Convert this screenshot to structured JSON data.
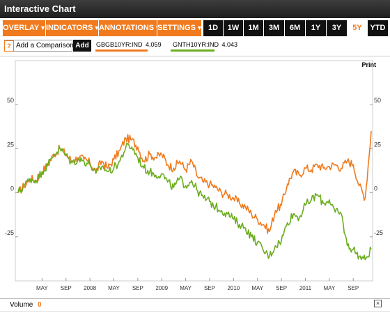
{
  "title": "Interactive Chart",
  "toolbar": {
    "menus": [
      "OVERLAY",
      "INDICATORS",
      "ANNOTATIONS",
      "SETTINGS"
    ],
    "ranges": [
      "1D",
      "1W",
      "1M",
      "3M",
      "6M",
      "1Y",
      "3Y",
      "5Y",
      "YTD"
    ],
    "active_range": "5Y"
  },
  "comparison": {
    "help_label": "?",
    "placeholder": "Add a Comparison",
    "add_label": "Add"
  },
  "legend": [
    {
      "symbol": "GBGB10YR:IND",
      "value": "4.059",
      "color": "#f07a1d"
    },
    {
      "symbol": "GNTH10YR:IND",
      "value": "4.043",
      "color": "#6aad1e"
    }
  ],
  "print_label": "Print",
  "volume": {
    "label": "Volume",
    "value": "0"
  },
  "chart_data": {
    "type": "line",
    "y_ticks": [
      "50",
      "25",
      "0",
      "-25"
    ],
    "ylim": [
      -50,
      75
    ],
    "x_tick_labels": [
      "MAY",
      "SEP",
      "2008",
      "MAY",
      "SEP",
      "2009",
      "MAY",
      "SEP",
      "2010",
      "MAY",
      "SEP",
      "2011",
      "MAY",
      "SEP"
    ],
    "x_tick_positions": [
      4,
      8,
      12,
      16,
      20,
      24,
      28,
      32,
      36,
      40,
      44,
      48,
      52,
      56
    ],
    "grid": false,
    "series": [
      {
        "name": "GBGB10YR:IND",
        "color": "#f07a1d",
        "x": [
          0,
          1,
          2,
          3,
          4,
          5,
          6,
          7,
          8,
          9,
          10,
          11,
          12,
          13,
          14,
          15,
          16,
          17,
          18,
          19,
          20,
          21,
          22,
          23,
          24,
          25,
          26,
          27,
          28,
          29,
          30,
          31,
          32,
          33,
          34,
          35,
          36,
          37,
          38,
          39,
          40,
          41,
          42,
          43,
          44,
          45,
          46,
          47,
          48,
          49,
          50,
          51,
          52,
          53,
          54,
          55,
          56,
          57,
          58,
          59
        ],
        "values": [
          0,
          4,
          8,
          7,
          12,
          16,
          22,
          25,
          22,
          18,
          20,
          19,
          17,
          12,
          18,
          14,
          19,
          24,
          31,
          30,
          26,
          18,
          22,
          20,
          22,
          16,
          14,
          18,
          13,
          18,
          9,
          6,
          5,
          3,
          0,
          -1,
          -3,
          -6,
          -8,
          -12,
          -15,
          -18,
          -22,
          -10,
          -7,
          5,
          12,
          10,
          14,
          13,
          16,
          14,
          15,
          16,
          14,
          18,
          16,
          4,
          -3,
          35
        ]
      },
      {
        "name": "GNTH10YR:IND",
        "color": "#6aad1e",
        "x": [
          0,
          1,
          2,
          3,
          4,
          5,
          6,
          7,
          8,
          9,
          10,
          11,
          12,
          13,
          14,
          15,
          16,
          17,
          18,
          19,
          20,
          21,
          22,
          23,
          24,
          25,
          26,
          27,
          28,
          29,
          30,
          31,
          32,
          33,
          34,
          35,
          36,
          37,
          38,
          39,
          40,
          41,
          42,
          43,
          44,
          45,
          46,
          47,
          48,
          49,
          50,
          51,
          52,
          53,
          54,
          55,
          56,
          57,
          58,
          59
        ],
        "values": [
          0,
          4,
          8,
          7,
          12,
          16,
          22,
          25,
          21,
          17,
          19,
          18,
          16,
          11,
          15,
          12,
          14,
          18,
          26,
          26,
          20,
          14,
          12,
          10,
          11,
          6,
          3,
          8,
          4,
          7,
          1,
          -3,
          -5,
          -8,
          -10,
          -12,
          -15,
          -18,
          -20,
          -25,
          -28,
          -33,
          -36,
          -30,
          -27,
          -17,
          -12,
          -14,
          -7,
          -4,
          -1,
          -6,
          -4,
          -11,
          -12,
          -30,
          -32,
          -36,
          -38,
          -32
        ]
      }
    ]
  }
}
